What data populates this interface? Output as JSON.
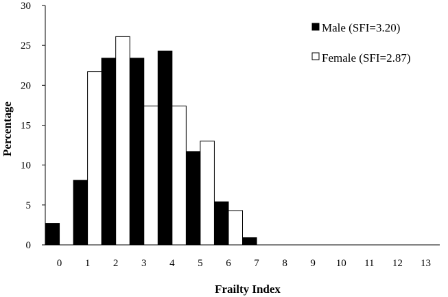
{
  "chart_data": {
    "type": "bar",
    "title": "",
    "xlabel": "Frailty Index",
    "ylabel": "Percentage",
    "categories": [
      "0",
      "1",
      "2",
      "3",
      "4",
      "5",
      "6",
      "7",
      "8",
      "9",
      "10",
      "11",
      "12",
      "13"
    ],
    "ylim": [
      0,
      30
    ],
    "yticks": [
      "0",
      "5",
      "10",
      "15",
      "20",
      "25",
      "30"
    ],
    "grid": false,
    "legend_position": "top-right",
    "series": [
      {
        "name": "Male (SFI=3.20)",
        "color": "#000000",
        "values": [
          2.7,
          8.1,
          23.4,
          23.4,
          24.3,
          11.7,
          5.4,
          0.9,
          0,
          0,
          0,
          0,
          0,
          0
        ]
      },
      {
        "name": "Female (SFI=2.87)",
        "color": "#ffffff",
        "values": [
          0,
          21.7,
          26.1,
          17.4,
          17.4,
          13.0,
          4.3,
          0,
          0,
          0,
          0,
          0,
          0,
          0
        ]
      }
    ]
  }
}
